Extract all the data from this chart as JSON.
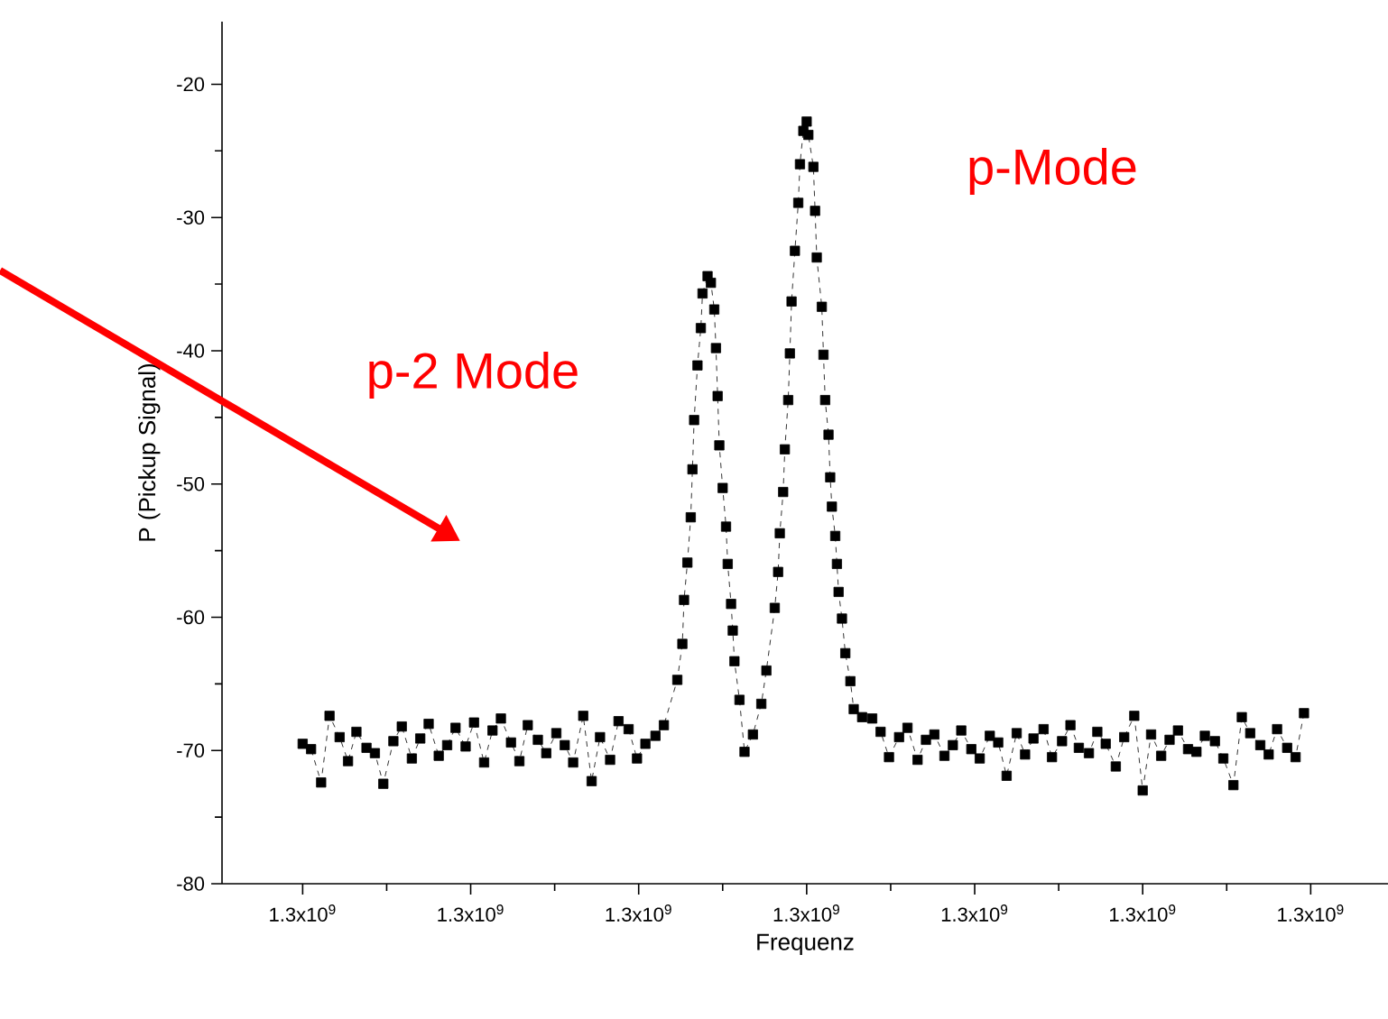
{
  "chart_data": {
    "type": "line",
    "xlabel": "Frequenz",
    "ylabel": "P (Pickup Signal)",
    "xlim": [
      1299652000,
      1300346000
    ],
    "ylim": [
      -80,
      -15.3
    ],
    "xticks": [
      {
        "value": 1299700000,
        "label": "1.3x10$^{9}$"
      },
      {
        "value": 1299800000,
        "label": "1.3x10$^{9}$"
      },
      {
        "value": 1299900000,
        "label": "1.3x10$^{9}$"
      },
      {
        "value": 1300000000,
        "label": "1.3x10$^{9}$"
      },
      {
        "value": 1300100000,
        "label": "1.3x10$^{9}$"
      },
      {
        "value": 1300200000,
        "label": "1.3x10$^{9}$"
      },
      {
        "value": 1300300000,
        "label": "1.3x10$^{9}$"
      }
    ],
    "yticks": [
      -80,
      -70,
      -60,
      -50,
      -40,
      -30,
      -20
    ],
    "marker": "square",
    "line_style": "dashed",
    "annotations": [
      "p-2 Mode",
      "p-Mode"
    ],
    "series": [
      {
        "color": "#000000",
        "x": [
          1299700000,
          1299705000,
          1299711000,
          1299716000,
          1299722000,
          1299727000,
          1299732000,
          1299738000,
          1299743000,
          1299748000,
          1299754000,
          1299759000,
          1299765000,
          1299770000,
          1299775000,
          1299781000,
          1299786000,
          1299791000,
          1299797000,
          1299802000,
          1299808000,
          1299813000,
          1299818000,
          1299824000,
          1299829000,
          1299834000,
          1299840000,
          1299845000,
          1299851000,
          1299856000,
          1299861000,
          1299867000,
          1299872000,
          1299877000,
          1299883000,
          1299888000,
          1299894000,
          1299899000,
          1299904000,
          1299910000,
          1299915000,
          1299923000,
          1299926000,
          1299927000,
          1299929000,
          1299931000,
          1299932000,
          1299933000,
          1299935000,
          1299937000,
          1299938000,
          1299941000,
          1299943000,
          1299945000,
          1299946000,
          1299947000,
          1299948000,
          1299950000,
          1299952000,
          1299953000,
          1299955000,
          1299956000,
          1299957000,
          1299960000,
          1299963000,
          1299968000,
          1299973000,
          1299976000,
          1299981000,
          1299983000,
          1299984000,
          1299986000,
          1299987000,
          1299989000,
          1299990000,
          1299991000,
          1299993000,
          1299995000,
          1299996000,
          1299998000,
          1300000000,
          1300001000,
          1300004000,
          1300005000,
          1300006000,
          1300009000,
          1300010000,
          1300011000,
          1300013000,
          1300014000,
          1300015000,
          1300017000,
          1300018000,
          1300019000,
          1300021000,
          1300023000,
          1300026000,
          1300028000,
          1300033000,
          1300039000,
          1300044000,
          1300049000,
          1300055000,
          1300060000,
          1300066000,
          1300071000,
          1300076000,
          1300082000,
          1300087000,
          1300092000,
          1300098000,
          1300103000,
          1300109000,
          1300114000,
          1300119000,
          1300125000,
          1300130000,
          1300135000,
          1300141000,
          1300146000,
          1300152000,
          1300157000,
          1300162000,
          1300168000,
          1300173000,
          1300178000,
          1300184000,
          1300189000,
          1300195000,
          1300200000,
          1300205000,
          1300211000,
          1300216000,
          1300221000,
          1300227000,
          1300232000,
          1300237000,
          1300243000,
          1300248000,
          1300254000,
          1300259000,
          1300264000,
          1300270000,
          1300275000,
          1300280000,
          1300286000,
          1300291000,
          1300296000
        ],
        "values": [
          -69.5,
          -69.9,
          -72.4,
          -67.4,
          -69.0,
          -70.8,
          -68.6,
          -69.8,
          -70.2,
          -72.5,
          -69.3,
          -68.2,
          -70.6,
          -69.1,
          -68.0,
          -70.4,
          -69.6,
          -68.3,
          -69.7,
          -67.9,
          -70.9,
          -68.5,
          -67.6,
          -69.4,
          -70.8,
          -68.1,
          -69.2,
          -70.2,
          -68.7,
          -69.6,
          -70.9,
          -67.4,
          -72.3,
          -69.0,
          -70.7,
          -67.8,
          -68.4,
          -70.6,
          -69.5,
          -68.9,
          -68.1,
          -64.7,
          -62.0,
          -58.7,
          -55.9,
          -52.5,
          -48.9,
          -45.2,
          -41.1,
          -38.3,
          -35.7,
          -34.4,
          -34.9,
          -36.9,
          -39.8,
          -43.4,
          -47.1,
          -50.3,
          -53.2,
          -56.0,
          -59.0,
          -61.0,
          -63.3,
          -66.2,
          -70.1,
          -68.8,
          -66.5,
          -64.0,
          -59.3,
          -56.6,
          -53.7,
          -50.6,
          -47.4,
          -43.7,
          -40.2,
          -36.3,
          -32.5,
          -28.9,
          -26.0,
          -23.5,
          -22.8,
          -23.8,
          -26.2,
          -29.5,
          -33.0,
          -36.7,
          -40.3,
          -43.7,
          -46.3,
          -49.5,
          -51.7,
          -53.9,
          -56.0,
          -58.1,
          -60.1,
          -62.7,
          -64.8,
          -66.9,
          -67.5,
          -67.6,
          -68.6,
          -70.5,
          -69.0,
          -68.3,
          -70.7,
          -69.2,
          -68.8,
          -70.4,
          -69.6,
          -68.5,
          -69.9,
          -70.6,
          -68.9,
          -69.4,
          -71.9,
          -68.7,
          -70.3,
          -69.1,
          -68.4,
          -70.5,
          -69.3,
          -68.1,
          -69.8,
          -70.2,
          -68.6,
          -69.5,
          -71.2,
          -69.0,
          -67.4,
          -73.0,
          -68.8,
          -70.4,
          -69.2,
          -68.5,
          -69.9,
          -70.1,
          -68.9,
          -69.3,
          -70.6,
          -72.6,
          -67.5,
          -68.7,
          -69.6,
          -70.3,
          -68.4,
          -69.8,
          -70.5,
          -67.2
        ]
      }
    ]
  }
}
